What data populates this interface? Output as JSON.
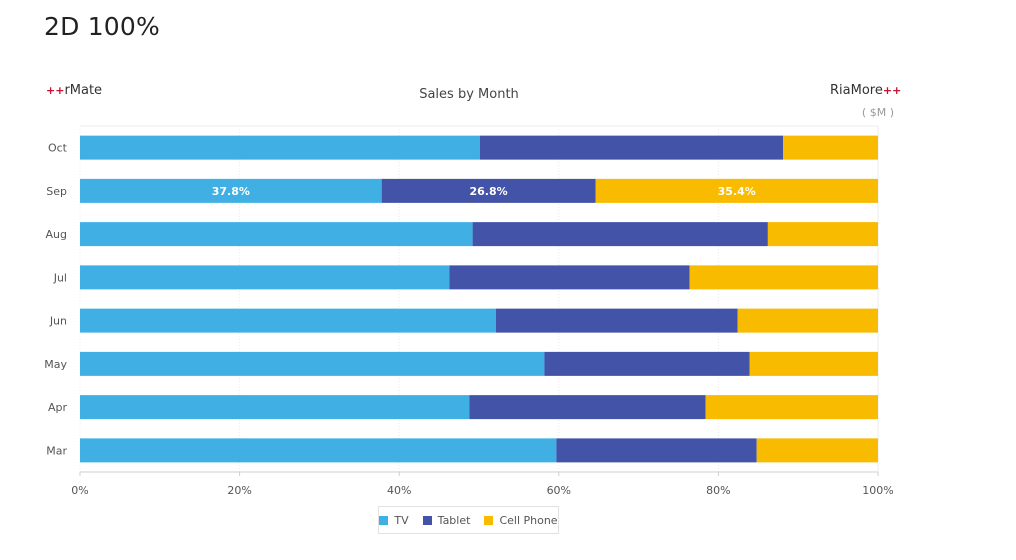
{
  "page_title": "2D 100%",
  "brand_left": {
    "plus": "+",
    "text": "rMate"
  },
  "brand_right": {
    "text": "RiaMore",
    "plus": "+"
  },
  "chart_data": {
    "type": "bar",
    "orientation": "horizontal",
    "stacked": "percent",
    "title": "Sales by Month",
    "unit_label": "( $M )",
    "categories": [
      "Oct",
      "Sep",
      "Aug",
      "Jul",
      "Jun",
      "May",
      "Apr",
      "Mar"
    ],
    "series": [
      {
        "name": "TV",
        "color": "#40b0e4",
        "values": [
          50.1,
          37.8,
          49.2,
          46.3,
          52.1,
          58.2,
          48.8,
          59.7
        ]
      },
      {
        "name": "Tablet",
        "color": "#4353a8",
        "values": [
          38.0,
          26.8,
          37.0,
          30.1,
          30.3,
          25.7,
          29.6,
          25.1
        ]
      },
      {
        "name": "Cell Phone",
        "color": "#f8bb00",
        "values": [
          11.9,
          35.4,
          13.8,
          23.6,
          17.6,
          16.1,
          21.6,
          15.2
        ]
      }
    ],
    "data_labels": {
      "Sep": [
        "37.8%",
        "26.8%",
        "35.4%"
      ]
    },
    "xlim": [
      0,
      100
    ],
    "x_ticks": [
      "0%",
      "20%",
      "40%",
      "60%",
      "80%",
      "100%"
    ],
    "grid": true,
    "legend_position": "bottom"
  }
}
